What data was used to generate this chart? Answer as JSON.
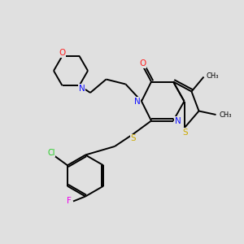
{
  "bg_color": "#e0e0e0",
  "atom_colors": {
    "C": "#000000",
    "N": "#1010ff",
    "O": "#ff2020",
    "S": "#ccaa00",
    "Cl": "#22cc22",
    "F": "#ee00ee",
    "H": "#000000"
  }
}
